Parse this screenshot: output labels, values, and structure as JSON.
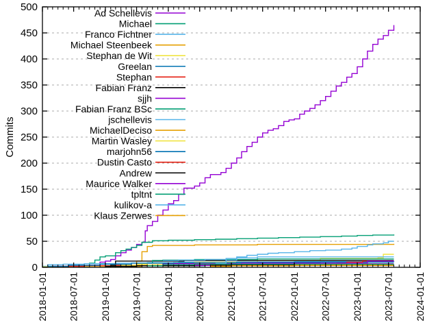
{
  "chart_data": {
    "type": "line",
    "subtype": "cumulative-step",
    "title": "",
    "xlabel": "",
    "ylabel": "Commits",
    "grid": "horizontal-dashed",
    "grid_color": "#a8a8a8",
    "axis_color": "#000000",
    "legend_position": "top-left-inside",
    "xlim": [
      "2018-01-01",
      "2024-01-01"
    ],
    "ylim": [
      0,
      500
    ],
    "x_ticks": [
      "2018-01-01",
      "2018-07-01",
      "2019-01-01",
      "2019-07-01",
      "2020-01-01",
      "2020-07-01",
      "2021-01-01",
      "2021-07-01",
      "2022-01-01",
      "2022-07-01",
      "2023-01-01",
      "2023-07-01",
      "2024-01-01"
    ],
    "y_ticks": [
      "0",
      "50",
      "100",
      "150",
      "200",
      "250",
      "300",
      "350",
      "400",
      "450",
      "500"
    ],
    "series": [
      {
        "name": "Ad Schellevis",
        "color": "#9400D3",
        "points": [
          [
            "2018-01",
            1
          ],
          [
            "2018-03",
            2
          ],
          [
            "2018-06",
            3
          ],
          [
            "2018-10",
            4
          ],
          [
            "2018-12",
            10
          ],
          [
            "2019-01",
            12
          ],
          [
            "2019-02",
            15
          ],
          [
            "2019-03",
            22
          ],
          [
            "2019-04",
            28
          ],
          [
            "2019-05",
            33
          ],
          [
            "2019-06",
            38
          ],
          [
            "2019-07",
            44
          ],
          [
            "2019-08",
            48
          ],
          [
            "2019-08-20",
            70
          ],
          [
            "2019-09",
            80
          ],
          [
            "2019-10",
            88
          ],
          [
            "2019-11",
            100
          ],
          [
            "2019-12",
            110
          ],
          [
            "2020-01",
            122
          ],
          [
            "2020-02",
            128
          ],
          [
            "2020-03",
            140
          ],
          [
            "2020-04",
            152
          ],
          [
            "2020-06",
            156
          ],
          [
            "2020-07",
            162
          ],
          [
            "2020-08",
            172
          ],
          [
            "2020-09",
            178
          ],
          [
            "2020-11",
            182
          ],
          [
            "2020-12",
            190
          ],
          [
            "2021-01",
            200
          ],
          [
            "2021-02",
            210
          ],
          [
            "2021-03",
            222
          ],
          [
            "2021-04",
            232
          ],
          [
            "2021-05",
            240
          ],
          [
            "2021-06",
            250
          ],
          [
            "2021-07",
            258
          ],
          [
            "2021-08",
            263
          ],
          [
            "2021-09",
            266
          ],
          [
            "2021-10",
            272
          ],
          [
            "2021-11",
            280
          ],
          [
            "2021-12",
            283
          ],
          [
            "2022-01",
            285
          ],
          [
            "2022-02",
            294
          ],
          [
            "2022-03",
            300
          ],
          [
            "2022-04",
            305
          ],
          [
            "2022-05",
            312
          ],
          [
            "2022-06",
            320
          ],
          [
            "2022-07",
            328
          ],
          [
            "2022-08",
            338
          ],
          [
            "2022-09",
            348
          ],
          [
            "2022-10",
            355
          ],
          [
            "2022-11",
            365
          ],
          [
            "2022-12",
            372
          ],
          [
            "2023-01",
            385
          ],
          [
            "2023-02",
            400
          ],
          [
            "2023-03",
            415
          ],
          [
            "2023-04",
            428
          ],
          [
            "2023-05",
            438
          ],
          [
            "2023-06",
            445
          ],
          [
            "2023-07",
            455
          ],
          [
            "2023-08",
            465
          ]
        ]
      },
      {
        "name": "Michael",
        "color": "#009E73",
        "points": [
          [
            "2018-09",
            2
          ],
          [
            "2018-10",
            8
          ],
          [
            "2018-11",
            14
          ],
          [
            "2018-12",
            20
          ],
          [
            "2019-01",
            22
          ],
          [
            "2019-03",
            28
          ],
          [
            "2019-04",
            32
          ],
          [
            "2019-05",
            35
          ],
          [
            "2019-06",
            38
          ],
          [
            "2019-07",
            42
          ],
          [
            "2019-08",
            48
          ],
          [
            "2019-10",
            51
          ],
          [
            "2020-01",
            52
          ],
          [
            "2020-06",
            53
          ],
          [
            "2020-10",
            54
          ],
          [
            "2021-02",
            55
          ],
          [
            "2021-06",
            56
          ],
          [
            "2021-10",
            57
          ],
          [
            "2022-02",
            58
          ],
          [
            "2022-06",
            59
          ],
          [
            "2022-10",
            60
          ],
          [
            "2023-01",
            61
          ],
          [
            "2023-04",
            62
          ],
          [
            "2023-08",
            63
          ]
        ]
      },
      {
        "name": "Franco Fichtner",
        "color": "#56B4E9",
        "points": [
          [
            "2018-01",
            2
          ],
          [
            "2018-02",
            5
          ],
          [
            "2018-05",
            6
          ],
          [
            "2018-09",
            7
          ],
          [
            "2019-03",
            8
          ],
          [
            "2019-09",
            9
          ],
          [
            "2020-03",
            10
          ],
          [
            "2021-01",
            10
          ],
          [
            "2022-01",
            11
          ],
          [
            "2023-08",
            12
          ]
        ]
      },
      {
        "name": "Michael Steenbeek",
        "color": "#E69F00",
        "points": [
          [
            "2019-06",
            2
          ],
          [
            "2019-07",
            12
          ],
          [
            "2019-08",
            30
          ],
          [
            "2019-09",
            40
          ],
          [
            "2019-10",
            42
          ],
          [
            "2020-06",
            43
          ],
          [
            "2021-06",
            44
          ],
          [
            "2023-08",
            45
          ]
        ]
      },
      {
        "name": "Stephan de Wit",
        "color": "#F0E442",
        "points": [
          [
            "2018-01",
            1
          ],
          [
            "2018-06",
            2
          ],
          [
            "2019-07",
            6
          ],
          [
            "2019-09",
            8
          ],
          [
            "2020-06",
            10
          ],
          [
            "2021-06",
            13
          ],
          [
            "2022-06",
            17
          ],
          [
            "2023-05",
            18
          ],
          [
            "2023-06",
            25
          ],
          [
            "2023-08",
            25
          ]
        ]
      },
      {
        "name": "Greelan",
        "color": "#0072B2",
        "points": [
          [
            "2020-05",
            3
          ],
          [
            "2020-08",
            6
          ],
          [
            "2020-12",
            8
          ],
          [
            "2021-06",
            9
          ],
          [
            "2022-06",
            10
          ],
          [
            "2023-08",
            10
          ]
        ]
      },
      {
        "name": "Stephan",
        "color": "#E51E10",
        "points": [
          [
            "2018-03",
            2
          ],
          [
            "2018-09",
            3
          ],
          [
            "2019-03",
            4
          ],
          [
            "2020-01",
            5
          ],
          [
            "2023-08",
            5
          ]
        ]
      },
      {
        "name": "Fabian Franz",
        "color": "#000000",
        "points": [
          [
            "2019-02",
            4
          ],
          [
            "2019-03",
            12
          ],
          [
            "2019-06",
            12
          ],
          [
            "2020-04",
            13
          ],
          [
            "2023-08",
            13
          ]
        ]
      },
      {
        "name": "sjjh",
        "color": "#9400D3",
        "points": [
          [
            "2019-10",
            5
          ],
          [
            "2019-12",
            7
          ],
          [
            "2020-06",
            7
          ],
          [
            "2023-08",
            7
          ]
        ]
      },
      {
        "name": "Fabian Franz BSc",
        "color": "#009E73",
        "points": [
          [
            "2019-09",
            8
          ],
          [
            "2019-10",
            13
          ],
          [
            "2019-12",
            14
          ],
          [
            "2020-06",
            15
          ],
          [
            "2021-06",
            16
          ],
          [
            "2023-08",
            16
          ]
        ]
      },
      {
        "name": "jschellevis",
        "color": "#56B4E9",
        "points": [
          [
            "2019-12",
            13
          ],
          [
            "2020-03",
            14
          ],
          [
            "2020-08",
            15
          ],
          [
            "2020-12",
            17
          ],
          [
            "2021-02",
            20
          ],
          [
            "2021-04",
            23
          ],
          [
            "2021-06",
            25
          ],
          [
            "2021-08",
            27
          ],
          [
            "2021-10",
            28
          ],
          [
            "2022-01",
            30
          ],
          [
            "2022-04",
            32
          ],
          [
            "2022-07",
            33
          ],
          [
            "2022-10",
            35
          ],
          [
            "2022-12",
            37
          ],
          [
            "2023-01",
            40
          ],
          [
            "2023-03",
            43
          ],
          [
            "2023-04",
            45
          ],
          [
            "2023-06",
            47
          ],
          [
            "2023-07",
            50
          ],
          [
            "2023-08",
            50
          ]
        ]
      },
      {
        "name": "MichaelDeciso",
        "color": "#E69F00",
        "points": [
          [
            "2019-05",
            2
          ],
          [
            "2019-08",
            3
          ],
          [
            "2020-02",
            4
          ],
          [
            "2023-08",
            4
          ]
        ]
      },
      {
        "name": "Martin Wasley",
        "color": "#F0E442",
        "points": [
          [
            "2019-01",
            2
          ],
          [
            "2019-04",
            4
          ],
          [
            "2019-10",
            5
          ],
          [
            "2020-06",
            6
          ],
          [
            "2023-08",
            6
          ]
        ]
      },
      {
        "name": "marjohn56",
        "color": "#0072B2",
        "points": [
          [
            "2018-02",
            2
          ],
          [
            "2018-06",
            4
          ],
          [
            "2018-12",
            6
          ],
          [
            "2019-06",
            8
          ],
          [
            "2020-02",
            9
          ],
          [
            "2021-02",
            10
          ],
          [
            "2023-08",
            10
          ]
        ]
      },
      {
        "name": "Dustin Casto",
        "color": "#E51E10",
        "points": [
          [
            "2022-09",
            8
          ],
          [
            "2022-11",
            10
          ],
          [
            "2023-02",
            12
          ],
          [
            "2023-04",
            12
          ],
          [
            "2023-08",
            12
          ]
        ]
      },
      {
        "name": "Andrew",
        "color": "#000000",
        "points": [
          [
            "2019-01",
            2
          ],
          [
            "2019-07",
            3
          ],
          [
            "2020-07",
            4
          ],
          [
            "2023-08",
            4
          ]
        ]
      },
      {
        "name": "Maurice Walker",
        "color": "#9400D3",
        "points": [
          [
            "2020-06",
            4
          ],
          [
            "2020-09",
            6
          ],
          [
            "2021-03",
            8
          ],
          [
            "2023-03",
            12
          ],
          [
            "2023-08",
            12
          ]
        ]
      },
      {
        "name": "tpltnt",
        "color": "#009E73",
        "points": [
          [
            "2019-09",
            3
          ],
          [
            "2019-12",
            5
          ],
          [
            "2020-06",
            6
          ],
          [
            "2023-08",
            6
          ]
        ]
      },
      {
        "name": "kulikov-a",
        "color": "#56B4E9",
        "points": [
          [
            "2020-10",
            8
          ],
          [
            "2020-12",
            14
          ],
          [
            "2021-02",
            18
          ],
          [
            "2021-06",
            20
          ],
          [
            "2023-08",
            20
          ]
        ]
      },
      {
        "name": "Klaus Zerwes",
        "color": "#E69F00",
        "points": [
          [
            "2020-09",
            2
          ],
          [
            "2021-01",
            3
          ],
          [
            "2022-01",
            4
          ],
          [
            "2023-08",
            4
          ]
        ]
      }
    ]
  }
}
